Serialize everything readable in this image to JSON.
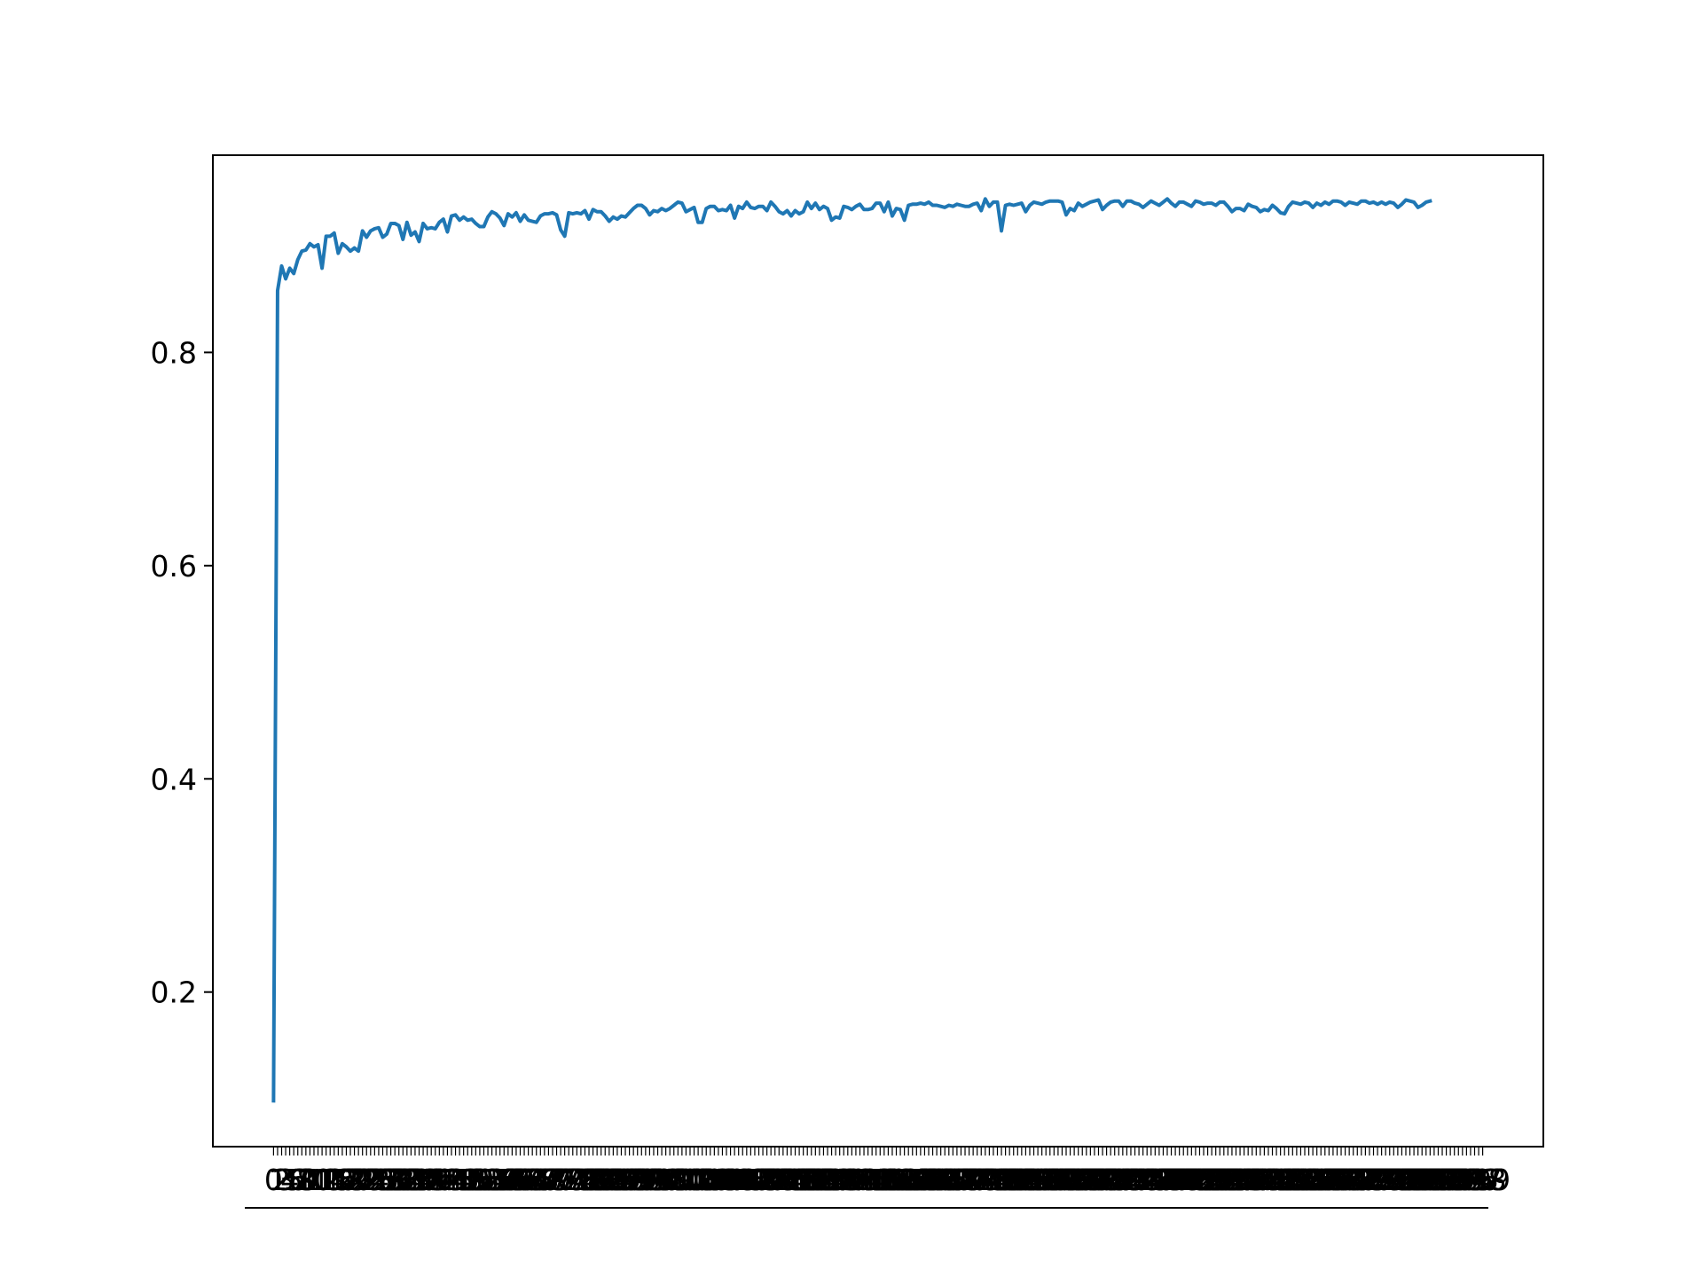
{
  "chart_data": {
    "type": "line",
    "title": "",
    "xlabel": "",
    "ylabel": "",
    "x": {
      "start": 0,
      "end": 299,
      "step": 1
    },
    "xlim": [
      -15,
      314
    ],
    "ylim": [
      0.055,
      0.985
    ],
    "yticks": [
      {
        "value": 0.2,
        "label": "0.2"
      },
      {
        "value": 0.4,
        "label": "0.4"
      },
      {
        "value": 0.6,
        "label": "0.6"
      },
      {
        "value": 0.8,
        "label": "0.8"
      }
    ],
    "grid": false,
    "legend": "none",
    "series": [
      {
        "color": "#1f77b4",
        "values": [
          0.098,
          0.858,
          0.881,
          0.869,
          0.879,
          0.874,
          0.887,
          0.895,
          0.896,
          0.902,
          0.899,
          0.901,
          0.879,
          0.909,
          0.909,
          0.912,
          0.893,
          0.902,
          0.899,
          0.895,
          0.898,
          0.895,
          0.914,
          0.908,
          0.914,
          0.916,
          0.917,
          0.908,
          0.911,
          0.921,
          0.921,
          0.919,
          0.906,
          0.922,
          0.91,
          0.913,
          0.904,
          0.921,
          0.916,
          0.917,
          0.916,
          0.922,
          0.925,
          0.913,
          0.928,
          0.929,
          0.924,
          0.927,
          0.924,
          0.925,
          0.921,
          0.918,
          0.918,
          0.927,
          0.932,
          0.93,
          0.926,
          0.919,
          0.93,
          0.927,
          0.931,
          0.923,
          0.929,
          0.924,
          0.923,
          0.922,
          0.928,
          0.93,
          0.93,
          0.931,
          0.929,
          0.915,
          0.909,
          0.931,
          0.93,
          0.931,
          0.93,
          0.933,
          0.925,
          0.934,
          0.932,
          0.932,
          0.928,
          0.923,
          0.927,
          0.925,
          0.928,
          0.927,
          0.931,
          0.935,
          0.938,
          0.938,
          0.935,
          0.929,
          0.933,
          0.932,
          0.935,
          0.933,
          0.935,
          0.938,
          0.941,
          0.94,
          0.932,
          0.934,
          0.936,
          0.922,
          0.922,
          0.935,
          0.937,
          0.937,
          0.933,
          0.934,
          0.933,
          0.938,
          0.926,
          0.937,
          0.935,
          0.941,
          0.936,
          0.935,
          0.937,
          0.937,
          0.933,
          0.941,
          0.937,
          0.932,
          0.93,
          0.933,
          0.928,
          0.933,
          0.93,
          0.932,
          0.941,
          0.935,
          0.94,
          0.934,
          0.937,
          0.935,
          0.924,
          0.927,
          0.926,
          0.937,
          0.936,
          0.934,
          0.937,
          0.939,
          0.934,
          0.934,
          0.935,
          0.94,
          0.94,
          0.932,
          0.941,
          0.928,
          0.935,
          0.934,
          0.924,
          0.938,
          0.939,
          0.939,
          0.94,
          0.939,
          0.941,
          0.938,
          0.938,
          0.937,
          0.936,
          0.938,
          0.937,
          0.939,
          0.938,
          0.937,
          0.937,
          0.939,
          0.94,
          0.933,
          0.944,
          0.937,
          0.941,
          0.941,
          0.914,
          0.938,
          0.939,
          0.938,
          0.939,
          0.94,
          0.932,
          0.938,
          0.941,
          0.94,
          0.939,
          0.941,
          0.942,
          0.942,
          0.942,
          0.941,
          0.929,
          0.935,
          0.933,
          0.94,
          0.937,
          0.939,
          0.941,
          0.942,
          0.943,
          0.934,
          0.938,
          0.941,
          0.942,
          0.942,
          0.937,
          0.942,
          0.942,
          0.94,
          0.939,
          0.936,
          0.939,
          0.942,
          0.94,
          0.938,
          0.941,
          0.944,
          0.94,
          0.937,
          0.941,
          0.941,
          0.939,
          0.937,
          0.942,
          0.941,
          0.939,
          0.94,
          0.94,
          0.938,
          0.941,
          0.941,
          0.937,
          0.932,
          0.935,
          0.935,
          0.933,
          0.939,
          0.937,
          0.936,
          0.932,
          0.934,
          0.933,
          0.938,
          0.935,
          0.931,
          0.93,
          0.937,
          0.941,
          0.94,
          0.939,
          0.941,
          0.94,
          0.936,
          0.94,
          0.938,
          0.941,
          0.939,
          0.942,
          0.942,
          0.941,
          0.938,
          0.941,
          0.94,
          0.939,
          0.942,
          0.942,
          0.94,
          0.941,
          0.939,
          0.941,
          0.939,
          0.941,
          0.94,
          0.936,
          0.939,
          0.943,
          0.942,
          0.941,
          0.936,
          0.938,
          0.941,
          0.942
        ]
      }
    ]
  }
}
